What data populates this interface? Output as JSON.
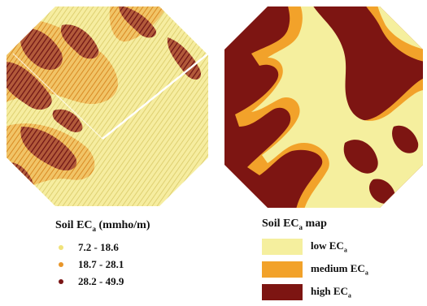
{
  "legend_left": {
    "title_prefix": "Soil EC",
    "title_sub": "a",
    "title_suffix": " (mmho/m)",
    "items": [
      {
        "label": "7.2 - 18.6",
        "color": "#f0e27a"
      },
      {
        "label": "18.7 - 28.1",
        "color": "#e8962a"
      },
      {
        "label": "28.2 - 49.9",
        "color": "#7a1616"
      }
    ]
  },
  "legend_right": {
    "title_prefix": "Soil EC",
    "title_sub": "a",
    "title_suffix": " map",
    "items": [
      {
        "label_prefix": "low EC",
        "label_sub": "a",
        "color": "#f5ef9e"
      },
      {
        "label_prefix": "medium EC",
        "label_sub": "a",
        "color": "#f2a22a"
      },
      {
        "label_prefix": "high EC",
        "label_sub": "a",
        "color": "#7d1512"
      }
    ]
  }
}
